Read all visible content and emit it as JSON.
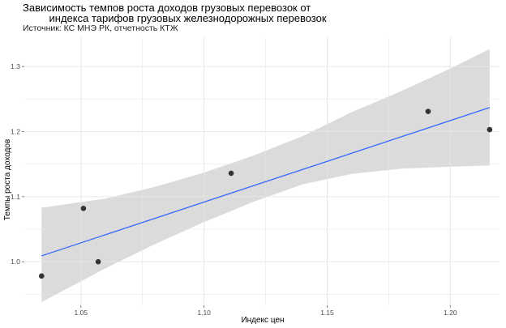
{
  "chart_data": {
    "type": "scatter",
    "title": "Зависимость темпов роста доходов грузовых перевозок от\n         индекса тарифов грузовых железнодорожных перевозок",
    "subtitle": "Источник: КС МНЭ РК, отчетность КТЖ",
    "xlabel": "Индекс цен",
    "ylabel": "Темпы роста доходов",
    "xlim": [
      1.027,
      1.22
    ],
    "ylim": [
      0.933,
      1.345
    ],
    "x_ticks": [
      1.05,
      1.1,
      1.15,
      1.2
    ],
    "x_tick_labels": [
      "1.05",
      "1.10",
      "1.15",
      "1.20"
    ],
    "y_ticks": [
      1.0,
      1.1,
      1.2,
      1.3
    ],
    "y_tick_labels": [
      "1.0",
      "1.1",
      "1.2",
      "1.3"
    ],
    "grid": true,
    "points": [
      {
        "x": 1.034,
        "y": 0.978
      },
      {
        "x": 1.051,
        "y": 1.082
      },
      {
        "x": 1.057,
        "y": 1.0
      },
      {
        "x": 1.111,
        "y": 1.136
      },
      {
        "x": 1.191,
        "y": 1.231
      },
      {
        "x": 1.216,
        "y": 1.203
      }
    ],
    "fit_line": {
      "x": [
        1.034,
        1.216
      ],
      "y": [
        1.009,
        1.237
      ],
      "color": "#3366ff"
    },
    "confidence_band": {
      "x": [
        1.034,
        1.06,
        1.08,
        1.1,
        1.12,
        1.14,
        1.16,
        1.18,
        1.2,
        1.216
      ],
      "lower": [
        0.938,
        0.99,
        1.027,
        1.061,
        1.092,
        1.119,
        1.135,
        1.143,
        1.146,
        1.148
      ],
      "upper": [
        1.083,
        1.097,
        1.115,
        1.137,
        1.163,
        1.193,
        1.23,
        1.262,
        1.297,
        1.327
      ],
      "color": "#d9d9d9"
    },
    "point_color": "#333333"
  }
}
